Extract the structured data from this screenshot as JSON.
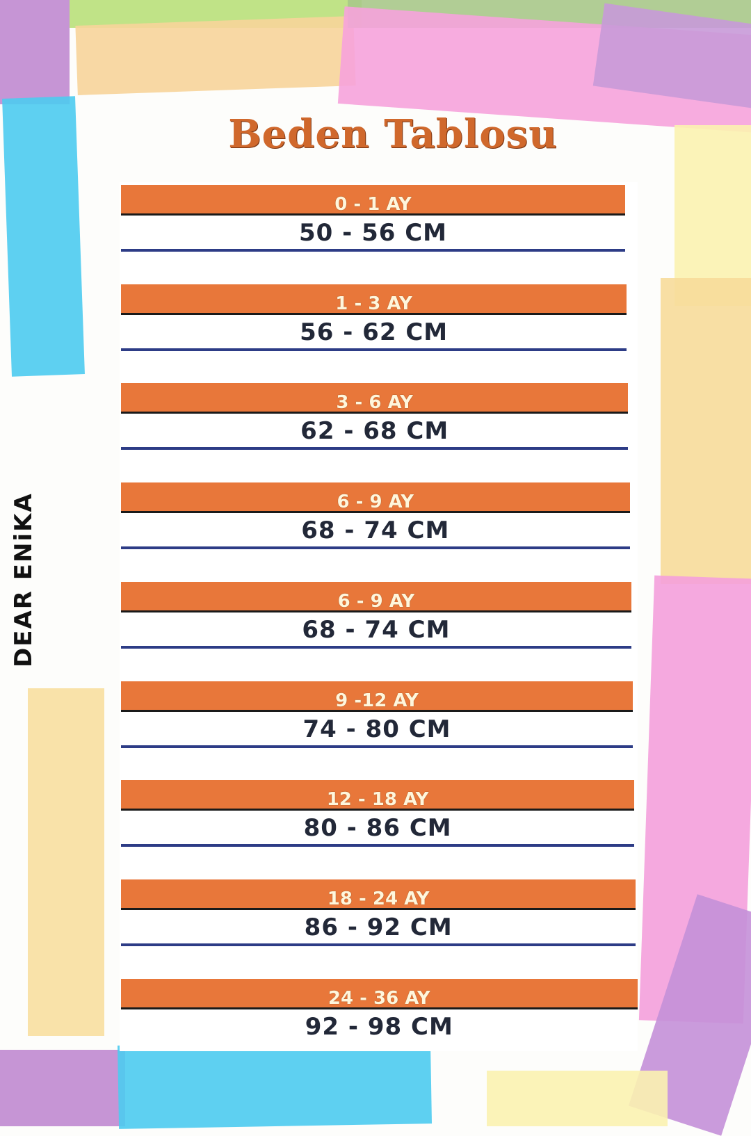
{
  "title": "Beden Tablosu",
  "brand": "DEAR ENiKA",
  "colors": {
    "header_orange": "#e8773a",
    "title_orange": "#d0682c",
    "divider_blue": "#2d3c86",
    "text_dark": "#222838"
  },
  "sizes": [
    {
      "age": "0 - 1 AY",
      "height": "50 - 56  CM"
    },
    {
      "age": "1 - 3 AY",
      "height": "56 - 62 CM"
    },
    {
      "age": "3 - 6 AY",
      "height": "62 - 68 CM"
    },
    {
      "age": "6 - 9 AY",
      "height": "68 - 74 CM"
    },
    {
      "age": "6 - 9 AY",
      "height": "68 - 74 CM"
    },
    {
      "age": "9 -12 AY",
      "height": "74 - 80 CM"
    },
    {
      "age": "12 - 18 AY",
      "height": "80 - 86 CM"
    },
    {
      "age": "18 - 24 AY",
      "height": "86 - 92 CM"
    },
    {
      "age": "24 - 36 AY",
      "height": "92 - 98 CM"
    }
  ]
}
